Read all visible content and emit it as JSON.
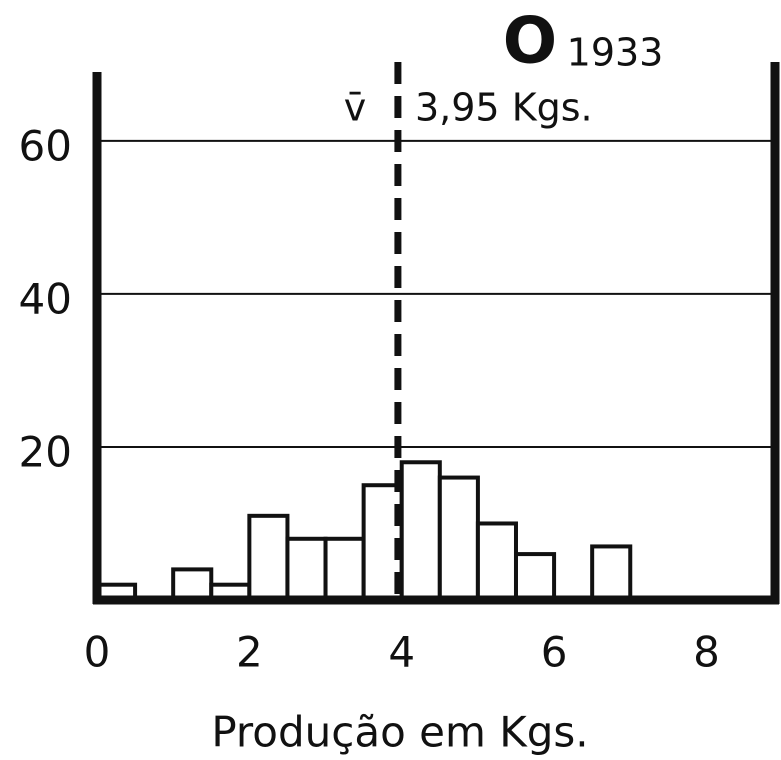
{
  "chart_data": {
    "type": "histogram",
    "title": "O",
    "subtitle": "1933",
    "xlabel": "Produção em Kgs.",
    "bins": [
      0,
      0.5,
      1,
      1.5,
      2,
      2.5,
      3,
      3.5,
      4,
      4.5,
      5,
      5.5,
      6,
      6.5,
      7
    ],
    "values": [
      2,
      0,
      4,
      2,
      11,
      8,
      8,
      15,
      18,
      16,
      10,
      6,
      0,
      7
    ],
    "color": "#ffffff",
    "xlim": [
      0,
      8.9
    ],
    "xticks": [
      0,
      2,
      4,
      6,
      8
    ],
    "ylim": [
      0,
      69
    ],
    "yticks": [
      20,
      40,
      60
    ],
    "grid": true,
    "mean_line": {
      "value": 3.95,
      "symbol": "v̄",
      "label": "3,95 Kgs."
    }
  }
}
